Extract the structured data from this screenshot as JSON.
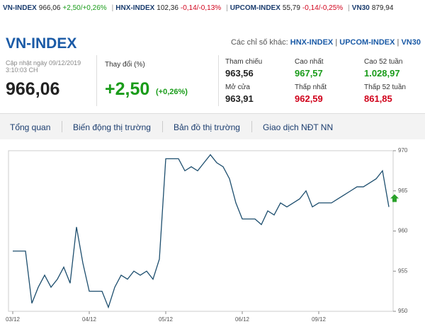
{
  "ticker_bar": [
    {
      "name": "VN-INDEX",
      "price": "966,06",
      "change": "+2,50/+0,26%",
      "color": "#1a9c1a"
    },
    {
      "name": "HNX-INDEX",
      "price": "102,36",
      "change": "-0,14/-0,13%",
      "color": "#d0021b"
    },
    {
      "name": "UPCOM-INDEX",
      "price": "55,79",
      "change": "-0,14/-0,25%",
      "color": "#d0021b"
    },
    {
      "name": "VN30",
      "price": "879,94"
    }
  ],
  "header": {
    "title": "VN-INDEX",
    "other_label": "Các chỉ số khác:",
    "other_links": [
      "HNX-INDEX",
      "UPCOM-INDEX",
      "VN30"
    ]
  },
  "quote": {
    "updated": "Cập nhật ngày 09/12/2019",
    "time": "3:10:03 CH",
    "price": "966,06",
    "change_label": "Thay đổi (%)",
    "change": "+2,50",
    "change_pct": "(+0,26%)"
  },
  "stats": [
    {
      "label": "Tham chiếu",
      "value": "963,56",
      "color": "#222"
    },
    {
      "label": "Cao nhất",
      "value": "967,57",
      "color": "#1a9c1a"
    },
    {
      "label": "Cao 52 tuần",
      "value": "1.028,97",
      "color": "#1a9c1a"
    },
    {
      "label": "Mở cửa",
      "value": "963,91",
      "color": "#222"
    },
    {
      "label": "Thấp nhất",
      "value": "962,59",
      "color": "#d0021b"
    },
    {
      "label": "Thấp 52 tuần",
      "value": "861,85",
      "color": "#d0021b"
    }
  ],
  "tabs": [
    "Tổng quan",
    "Biến động thị trường",
    "Bản đồ thị trường",
    "Giao dịch NĐT NN"
  ],
  "chart_data": {
    "type": "line",
    "categories": [
      "03/12",
      null,
      null,
      null,
      null,
      null,
      null,
      null,
      null,
      null,
      null,
      null,
      "04/12",
      null,
      null,
      null,
      null,
      null,
      null,
      null,
      null,
      null,
      null,
      null,
      "05/12",
      null,
      null,
      null,
      null,
      null,
      null,
      null,
      null,
      null,
      null,
      null,
      "06/12",
      null,
      null,
      null,
      null,
      null,
      null,
      null,
      null,
      null,
      null,
      null,
      "09/12",
      null,
      null,
      null,
      null,
      null,
      null,
      null,
      null,
      null,
      null,
      null
    ],
    "series": [
      {
        "name": "VN-INDEX",
        "color": "#1d4e6e",
        "values": [
          957.5,
          957.5,
          957.5,
          951,
          953,
          954.5,
          953,
          954,
          955.5,
          953.5,
          960.5,
          956,
          952.5,
          952.5,
          952.5,
          950.5,
          953,
          954.5,
          954,
          955,
          954.5,
          955,
          954,
          956.5,
          969,
          969,
          969,
          967.5,
          968,
          967.5,
          968.5,
          969.5,
          968.5,
          968,
          966.5,
          963.5,
          961.5,
          961.5,
          961.5,
          960.8,
          962.5,
          962,
          963.5,
          963,
          963.5,
          964,
          965,
          963,
          963.5,
          963.5,
          963.5,
          964,
          964.5,
          965,
          965.5,
          965.5,
          966,
          966.5,
          967.5,
          963
        ]
      }
    ],
    "ylim": [
      950,
      970
    ],
    "yticks": [
      950,
      955,
      960,
      965,
      970
    ],
    "y_axis_side": "right"
  }
}
